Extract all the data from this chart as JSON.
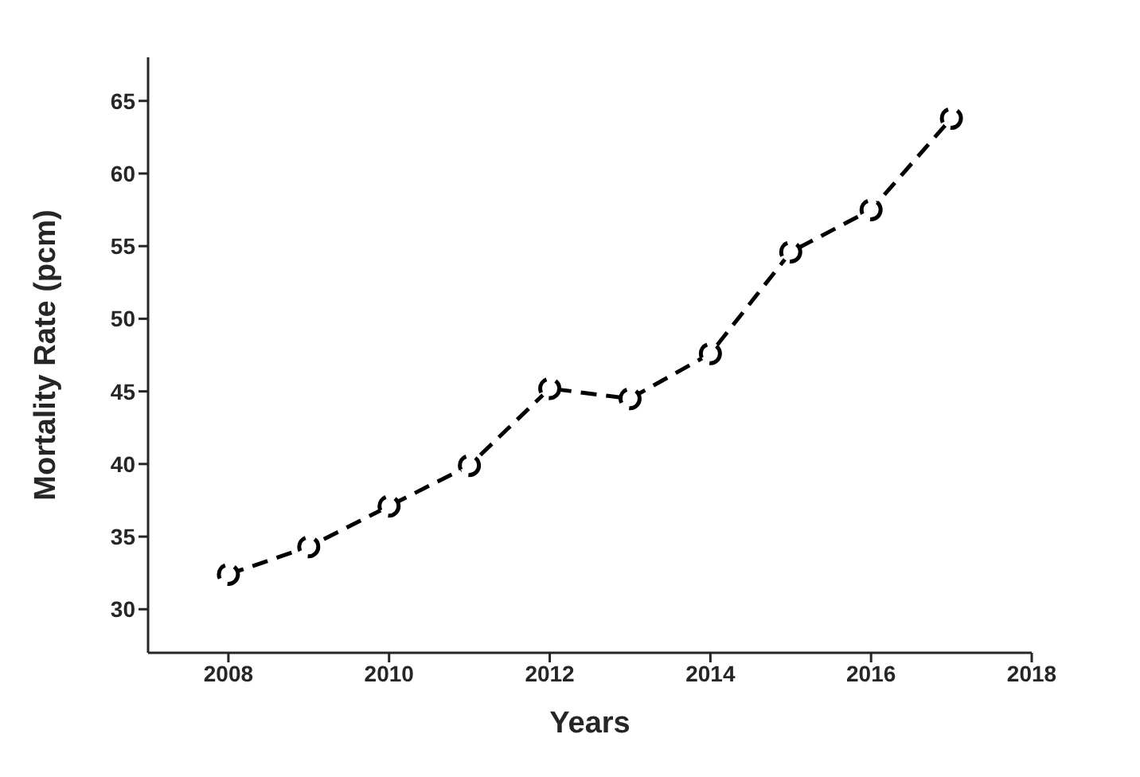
{
  "chart_data": {
    "type": "line",
    "xlabel": "Years",
    "ylabel": "Mortality Rate (pcm)",
    "x": [
      2008,
      2009,
      2010,
      2011,
      2012,
      2013,
      2014,
      2015,
      2016,
      2017
    ],
    "series": [
      {
        "color": "#000000",
        "values": [
          32.4,
          34.3,
          37.1,
          39.9,
          45.2,
          44.5,
          47.6,
          54.6,
          57.5,
          63.8
        ]
      }
    ],
    "xlim": [
      2007,
      2018
    ],
    "xticks": [
      2008,
      2010,
      2012,
      2014,
      2016,
      2018
    ],
    "ylim": [
      27,
      68
    ],
    "yticks": [
      30,
      35,
      40,
      45,
      50,
      55,
      60,
      65
    ],
    "grid": false,
    "legend": false,
    "marker": "circle",
    "line_style": "dashed"
  }
}
